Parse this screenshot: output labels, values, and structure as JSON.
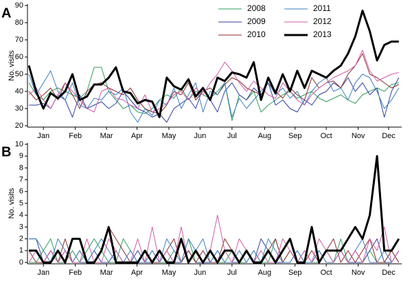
{
  "chart_data": [
    {
      "type": "line",
      "label": "A",
      "ylabel": "No. visits",
      "x": [
        1,
        2,
        3,
        4,
        5,
        6,
        7,
        8,
        9,
        10,
        11,
        12,
        13,
        14,
        15,
        16,
        17,
        18,
        19,
        20,
        21,
        22,
        23,
        24,
        25,
        26,
        27,
        28,
        29,
        30,
        31,
        32,
        33,
        34,
        35,
        36,
        37,
        38,
        39,
        40,
        41,
        42,
        43,
        44,
        45,
        46,
        47,
        48,
        49,
        50,
        51,
        52
      ],
      "xlim": [
        0.8,
        52.4
      ],
      "xticks": [
        {
          "value": 3,
          "label": "Jan"
        },
        {
          "value": 7.4,
          "label": "Feb"
        },
        {
          "value": 11.7,
          "label": "Mar"
        },
        {
          "value": 15.9,
          "label": "Apr"
        },
        {
          "value": 20.3,
          "label": "May"
        },
        {
          "value": 24.6,
          "label": "Jun"
        },
        {
          "value": 29,
          "label": "Jul"
        },
        {
          "value": 33.5,
          "label": "Aug"
        },
        {
          "value": 37.7,
          "label": "Sep"
        },
        {
          "value": 42,
          "label": "Oct"
        },
        {
          "value": 46.4,
          "label": "Nov"
        },
        {
          "value": 50.6,
          "label": "Dec"
        }
      ],
      "ylim": [
        20,
        90
      ],
      "yticks": [
        20,
        30,
        40,
        50,
        60,
        70,
        80,
        90
      ],
      "series": [
        {
          "name": "2008",
          "color": "#2e9e5b",
          "values": [
            45,
            38,
            35,
            40,
            42,
            40,
            38,
            36,
            40,
            54,
            54,
            40,
            35,
            30,
            32,
            28,
            27,
            30,
            35,
            38,
            36,
            42,
            35,
            40,
            38,
            36,
            40,
            45,
            23,
            38,
            35,
            40,
            28,
            32,
            35,
            38,
            40,
            36,
            38,
            40,
            36,
            34,
            36,
            38,
            35,
            33,
            38,
            40,
            42,
            40,
            44,
            45
          ]
        },
        {
          "name": "2009",
          "color": "#2f3fa0",
          "values": [
            32,
            32,
            33,
            30,
            38,
            35,
            25,
            38,
            30,
            32,
            34,
            30,
            33,
            40,
            35,
            30,
            28,
            25,
            27,
            22,
            30,
            33,
            36,
            30,
            42,
            35,
            28,
            40,
            45,
            38,
            35,
            42,
            38,
            45,
            32,
            35,
            30,
            28,
            35,
            32,
            38,
            40,
            45,
            42,
            48,
            40,
            45,
            38,
            42,
            25,
            40,
            48
          ]
        },
        {
          "name": "2010",
          "color": "#8b2b2b",
          "values": [
            40,
            35,
            38,
            42,
            35,
            45,
            38,
            30,
            40,
            44,
            45,
            42,
            40,
            38,
            42,
            35,
            30,
            28,
            27,
            32,
            40,
            38,
            45,
            35,
            40,
            42,
            38,
            44,
            48,
            46,
            42,
            40,
            38,
            45,
            40,
            36,
            42,
            38,
            35,
            48,
            42,
            45,
            46,
            42,
            50,
            55,
            62,
            50,
            48,
            45,
            42,
            44
          ]
        },
        {
          "name": "2011",
          "color": "#3a7fc1",
          "values": [
            50,
            38,
            45,
            52,
            40,
            35,
            45,
            32,
            30,
            36,
            35,
            40,
            38,
            42,
            28,
            22,
            30,
            26,
            35,
            32,
            42,
            30,
            38,
            45,
            28,
            40,
            38,
            45,
            25,
            36,
            30,
            35,
            40,
            45,
            38,
            42,
            36,
            40,
            32,
            40,
            45,
            48,
            40,
            42,
            35,
            45,
            50,
            48,
            40,
            30,
            35,
            42
          ]
        },
        {
          "name": "2012",
          "color": "#d05aa8",
          "values": [
            38,
            42,
            35,
            30,
            38,
            45,
            40,
            35,
            30,
            28,
            40,
            42,
            36,
            35,
            32,
            30,
            38,
            28,
            30,
            33,
            38,
            40,
            35,
            42,
            38,
            45,
            50,
            57,
            52,
            45,
            40,
            46,
            42,
            38,
            36,
            45,
            40,
            35,
            32,
            38,
            42,
            45,
            48,
            50,
            52,
            55,
            64,
            52,
            46,
            48,
            50,
            51
          ]
        },
        {
          "name": "2013",
          "color": "#000000",
          "width": 3,
          "values": [
            55,
            40,
            30,
            39,
            36,
            40,
            50,
            35,
            37,
            44,
            44,
            48,
            54,
            40,
            39,
            33,
            35,
            34,
            25,
            48,
            43,
            41,
            47,
            37,
            42,
            35,
            48,
            46,
            51,
            50,
            48,
            57,
            35,
            48,
            39,
            50,
            40,
            52,
            42,
            52,
            50,
            48,
            52,
            55,
            62,
            72,
            87,
            75,
            58,
            67,
            69,
            69
          ]
        }
      ]
    },
    {
      "type": "line",
      "label": "B",
      "ylabel": "No. visits",
      "x": [
        1,
        2,
        3,
        4,
        5,
        6,
        7,
        8,
        9,
        10,
        11,
        12,
        13,
        14,
        15,
        16,
        17,
        18,
        19,
        20,
        21,
        22,
        23,
        24,
        25,
        26,
        27,
        28,
        29,
        30,
        31,
        32,
        33,
        34,
        35,
        36,
        37,
        38,
        39,
        40,
        41,
        42,
        43,
        44,
        45,
        46,
        47,
        48,
        49,
        50,
        51,
        52
      ],
      "xlim": [
        0.8,
        52.4
      ],
      "xticks": [
        {
          "value": 3,
          "label": "Jan"
        },
        {
          "value": 7.4,
          "label": "Feb"
        },
        {
          "value": 11.7,
          "label": "Mar"
        },
        {
          "value": 15.9,
          "label": "Apr"
        },
        {
          "value": 20.3,
          "label": "May"
        },
        {
          "value": 24.6,
          "label": "Jun"
        },
        {
          "value": 29,
          "label": "Jul"
        },
        {
          "value": 33.5,
          "label": "Aug"
        },
        {
          "value": 37.7,
          "label": "Sep"
        },
        {
          "value": 42,
          "label": "Oct"
        },
        {
          "value": 46.4,
          "label": "Nov"
        },
        {
          "value": 50.6,
          "label": "Dec"
        }
      ],
      "ylim": [
        0,
        10
      ],
      "yticks": [
        0,
        1,
        2,
        3,
        4,
        5,
        6,
        7,
        8,
        9,
        10
      ],
      "series": [
        {
          "color": "#2e9e5b",
          "values": [
            0,
            0,
            1,
            2,
            0,
            0,
            1,
            0,
            1,
            2,
            1,
            0,
            0,
            2,
            1,
            0,
            0,
            1,
            0,
            0,
            1,
            0,
            2,
            0,
            0,
            1,
            0,
            0,
            1,
            0,
            0,
            1,
            0,
            0,
            2,
            0,
            1,
            0,
            1,
            0,
            0,
            1,
            0,
            2,
            0,
            1,
            0,
            1,
            0,
            0,
            1,
            0
          ]
        },
        {
          "color": "#2f3fa0",
          "values": [
            2,
            2,
            0,
            1,
            0,
            1,
            0,
            0,
            0,
            1,
            0,
            0,
            1,
            0,
            0,
            1,
            0,
            0,
            0,
            1,
            0,
            0,
            1,
            0,
            0,
            0,
            1,
            0,
            0,
            0,
            1,
            0,
            2,
            1,
            0,
            0,
            0,
            1,
            0,
            0,
            1,
            0,
            0,
            1,
            0,
            0,
            0,
            1,
            2,
            0,
            0,
            1
          ]
        },
        {
          "color": "#8b2b2b",
          "values": [
            1,
            0,
            0,
            1,
            0,
            2,
            0,
            1,
            0,
            0,
            1,
            3,
            2,
            1,
            0,
            0,
            1,
            0,
            0,
            1,
            2,
            0,
            1,
            0,
            1,
            0,
            0,
            2,
            1,
            0,
            1,
            0,
            0,
            1,
            2,
            0,
            1,
            0,
            0,
            1,
            0,
            1,
            2,
            0,
            1,
            0,
            1,
            2,
            0,
            0,
            1,
            0
          ]
        },
        {
          "color": "#3a7fc1",
          "values": [
            2,
            2,
            1,
            0,
            2,
            1,
            0,
            1,
            0,
            1,
            2,
            1,
            0,
            0,
            1,
            0,
            0,
            1,
            0,
            2,
            1,
            0,
            2,
            1,
            2,
            0,
            1,
            0,
            0,
            1,
            0,
            1,
            0,
            2,
            1,
            0,
            0,
            1,
            0,
            0,
            1,
            0,
            0,
            1,
            0,
            1,
            2,
            0,
            0,
            1,
            0,
            1
          ]
        },
        {
          "color": "#d05aa8",
          "values": [
            0,
            1,
            0,
            1,
            0,
            1,
            0,
            0,
            2,
            0,
            0,
            2,
            1,
            0,
            0,
            2,
            0,
            3,
            0,
            1,
            0,
            3,
            0,
            1,
            0,
            1,
            4,
            1,
            0,
            2,
            1,
            0,
            1,
            0,
            0,
            2,
            1,
            0,
            1,
            0,
            2,
            1,
            0,
            1,
            0,
            1,
            0,
            2,
            1,
            3,
            0,
            1
          ]
        },
        {
          "color": "#000000",
          "width": 3,
          "values": [
            1,
            1,
            0,
            0,
            1,
            0,
            2,
            2,
            0,
            0,
            1,
            3,
            0,
            0,
            0,
            0,
            1,
            0,
            1,
            0,
            0,
            2,
            0,
            1,
            0,
            1,
            0,
            1,
            1,
            0,
            1,
            0,
            0,
            1,
            0,
            1,
            2,
            0,
            0,
            3,
            0,
            1,
            1,
            1,
            2,
            3,
            2,
            4,
            9,
            1,
            1,
            2
          ]
        }
      ]
    }
  ]
}
